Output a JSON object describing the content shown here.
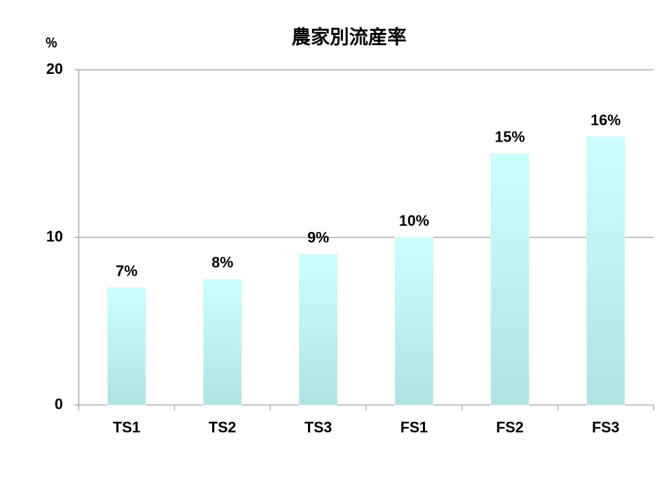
{
  "chart_data": {
    "type": "bar",
    "title": "農家別流産率",
    "y_label": "％",
    "categories": [
      "TS1",
      "TS2",
      "TS3",
      "FS1",
      "FS2",
      "FS3"
    ],
    "values": [
      7,
      7.5,
      9,
      10,
      15,
      16
    ],
    "value_labels": [
      "7%",
      "8%",
      "9%",
      "10%",
      "15%",
      "16%"
    ],
    "color": "#ccffff",
    "ylim": [
      0,
      20
    ],
    "yticks": [
      0,
      10,
      20
    ],
    "grid": true
  }
}
